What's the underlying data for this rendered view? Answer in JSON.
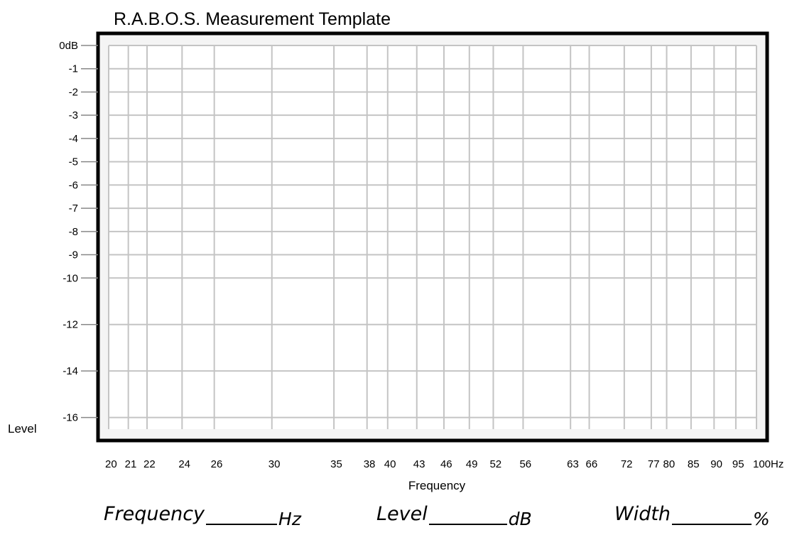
{
  "chart_data": {
    "type": "line",
    "title": "R.A.B.O.S. Measurement Template",
    "xlabel": "Frequency",
    "ylabel": "Level",
    "x_scale": "log",
    "xlim": [
      20,
      100
    ],
    "ylim": [
      -16.5,
      0
    ],
    "x_ticks": [
      20,
      21,
      22,
      24,
      26,
      30,
      35,
      38,
      40,
      43,
      46,
      49,
      52,
      56,
      63,
      66,
      72,
      77,
      80,
      85,
      90,
      95,
      100
    ],
    "x_tick_labels": [
      "20",
      "21",
      "22",
      "24",
      "26",
      "30",
      "35",
      "38",
      "40",
      "43",
      "46",
      "49",
      "52",
      "56",
      "63",
      "66",
      "72",
      "77",
      "80",
      "85",
      "90",
      "95",
      "100Hz"
    ],
    "y_ticks": [
      0,
      -1,
      -2,
      -3,
      -4,
      -5,
      -6,
      -7,
      -8,
      -9,
      -10,
      -12,
      -14,
      -16
    ],
    "y_tick_labels": [
      "0dB",
      "-1",
      "-2",
      "-3",
      "-4",
      "-5",
      "-6",
      "-7",
      "-8",
      "-9",
      "-10",
      "-12",
      "-14",
      "-16"
    ],
    "grid": true,
    "series": []
  },
  "fields": {
    "frequency_label": "Frequency",
    "frequency_unit": "Hz",
    "level_label": "Level",
    "level_unit": "dB",
    "width_label": "Width",
    "width_unit": "%"
  },
  "colors": {
    "grid": "#c4c4c4",
    "frame": "#000000",
    "plot_background": "#f4f4f4"
  }
}
